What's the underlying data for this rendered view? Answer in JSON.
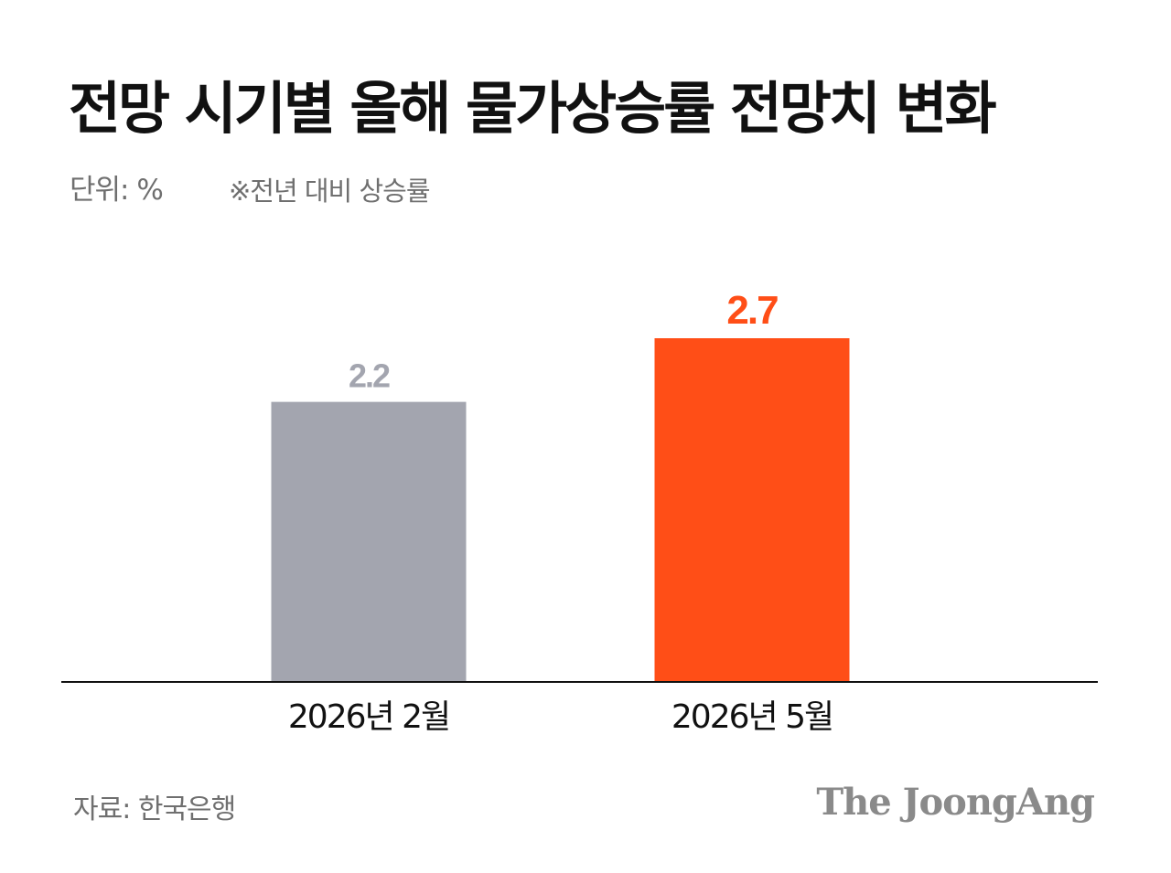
{
  "header": {
    "title": "전망 시기별 올해 물가상승률 전망치 변화",
    "unit": "단위: %",
    "note": "※전년 대비 상승률"
  },
  "footer": {
    "source": "자료: 한국은행",
    "logo": "The JoongAng"
  },
  "colors": {
    "bar_prev": "#a3a5af",
    "bar_latest": "#ff4e17",
    "label_prev": "#a3a5af",
    "label_latest": "#ff4e17",
    "baseline": "#111111"
  },
  "chart_data": {
    "type": "bar",
    "title": "전망 시기별 올해 물가상승률 전망치 변화",
    "xlabel": "",
    "ylabel": "",
    "categories": [
      "2026년 2월",
      "2026년 5월"
    ],
    "values": [
      2.2,
      2.7
    ],
    "value_labels": [
      "2.2",
      "2.7"
    ],
    "ylim": [
      0,
      2.7
    ],
    "grid": false,
    "legend": "none"
  }
}
